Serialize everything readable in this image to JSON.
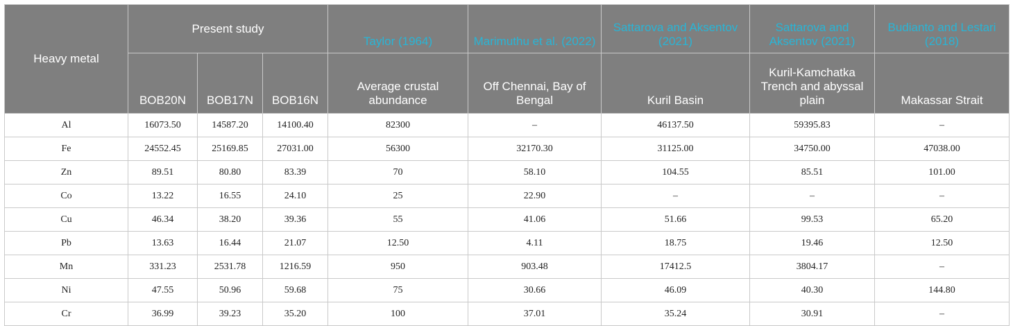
{
  "table": {
    "corner_label": "Heavy metal",
    "present_study_label": "Present study",
    "present_study_columns": [
      "BOB20N",
      "BOB17N",
      "BOB16N"
    ],
    "references": [
      {
        "citation": "Taylor (1964)",
        "description": "Average crustal abundance"
      },
      {
        "citation": "Marimuthu et al. (2022)",
        "description": "Off Chennai, Bay of Bengal"
      },
      {
        "citation": "Sattarova and Aksentov (2021)",
        "description": "Kuril Basin"
      },
      {
        "citation": "Sattarova and Aksentov (2021)",
        "description": "Kuril-Kamchatka Trench and abyssal plain"
      },
      {
        "citation": "Budianto and Lestari (2018)",
        "description": "Makassar Strait"
      }
    ],
    "rows": [
      {
        "metal": "Al",
        "values": [
          "16073.50",
          "14587.20",
          "14100.40",
          "82300",
          "–",
          "46137.50",
          "59395.83",
          "–"
        ]
      },
      {
        "metal": "Fe",
        "values": [
          "24552.45",
          "25169.85",
          "27031.00",
          "56300",
          "32170.30",
          "31125.00",
          "34750.00",
          "47038.00"
        ]
      },
      {
        "metal": "Zn",
        "values": [
          "89.51",
          "80.80",
          "83.39",
          "70",
          "58.10",
          "104.55",
          "85.51",
          "101.00"
        ]
      },
      {
        "metal": "Co",
        "values": [
          "13.22",
          "16.55",
          "24.10",
          "25",
          "22.90",
          "–",
          "–",
          "–"
        ]
      },
      {
        "metal": "Cu",
        "values": [
          "46.34",
          "38.20",
          "39.36",
          "55",
          "41.06",
          "51.66",
          "99.53",
          "65.20"
        ]
      },
      {
        "metal": "Pb",
        "values": [
          "13.63",
          "16.44",
          "21.07",
          "12.50",
          "4.11",
          "18.75",
          "19.46",
          "12.50"
        ]
      },
      {
        "metal": "Mn",
        "values": [
          "331.23",
          "2531.78",
          "1216.59",
          "950",
          "903.48",
          "17412.5",
          "3804.17",
          "–"
        ]
      },
      {
        "metal": "Ni",
        "values": [
          "47.55",
          "50.96",
          "59.68",
          "75",
          "30.66",
          "46.09",
          "40.30",
          "144.80"
        ]
      },
      {
        "metal": "Cr",
        "values": [
          "36.99",
          "39.23",
          "35.20",
          "100",
          "37.01",
          "35.24",
          "30.91",
          "–"
        ]
      }
    ]
  }
}
